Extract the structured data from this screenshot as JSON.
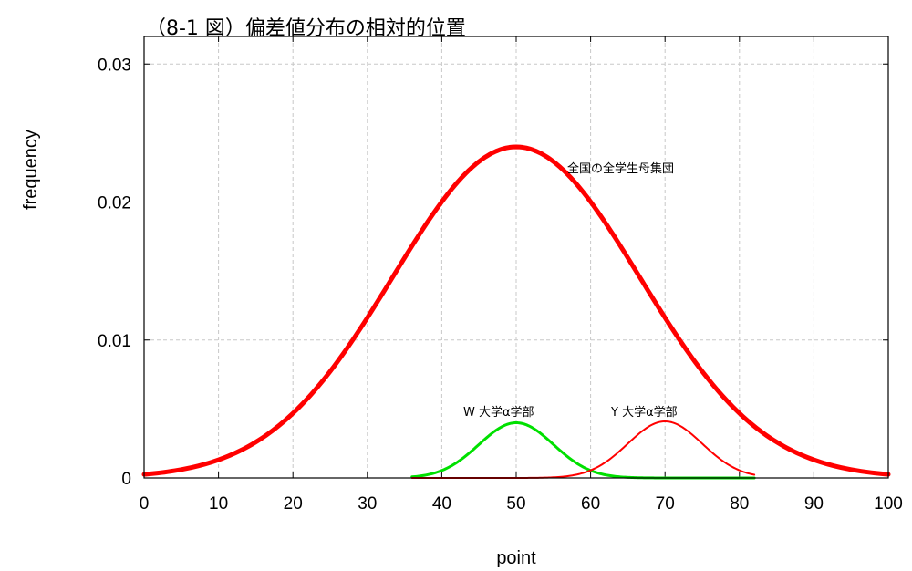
{
  "chart_data": {
    "type": "line",
    "title": "（8-1 図）偏差値分布の相対的位置",
    "xlabel": "point",
    "ylabel": "frequency",
    "xlim": [
      0,
      100
    ],
    "ylim": [
      0,
      0.032
    ],
    "x_ticks": [
      "0",
      "10",
      "20",
      "30",
      "40",
      "50",
      "60",
      "70",
      "80",
      "90",
      "100"
    ],
    "y_ticks": [
      {
        "value": 0,
        "label": "0"
      },
      {
        "value": 0.01,
        "label": "0.01"
      },
      {
        "value": 0.02,
        "label": "0.02"
      },
      {
        "value": 0.03,
        "label": "0.03"
      }
    ],
    "grid": true,
    "series": [
      {
        "name": "全国の全学生母集団",
        "color": "#ff0000",
        "mean": 50,
        "sd": 16.6,
        "peak": 0.024,
        "x_range": [
          0,
          100
        ],
        "line": "thick"
      },
      {
        "name": "W 大学α学部",
        "color": "#00e000",
        "mean": 50,
        "sd": 5,
        "peak": 0.004,
        "x_range": [
          36,
          82
        ],
        "line": "medium"
      },
      {
        "name": "Y 大学α学部",
        "color": "#ff0000",
        "mean": 70,
        "sd": 5,
        "peak": 0.0041,
        "x_range": [
          36,
          82
        ],
        "line": "thin"
      }
    ]
  }
}
